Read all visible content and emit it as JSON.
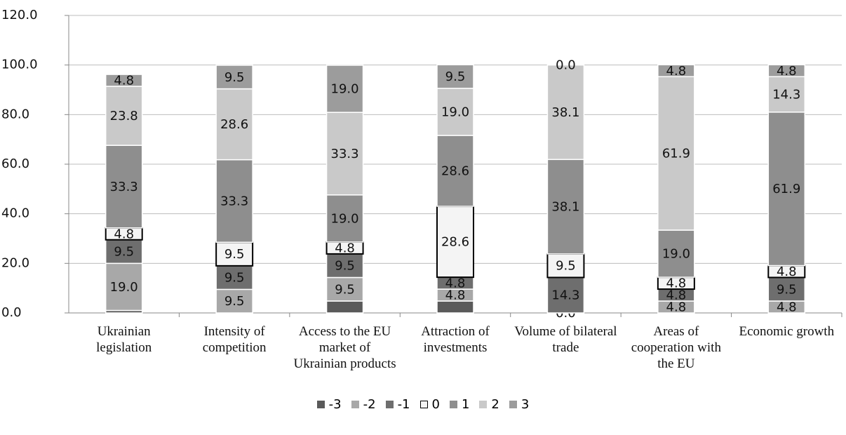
{
  "chart_data": {
    "type": "stacked-bar",
    "categories": [
      "Ukrainian legislation",
      "Intensity of competition",
      "Access to the EU market of Ukrainian products",
      "Attraction of investments",
      "Volume of bilateral trade",
      "Areas of cooperation with the EU",
      "Economic growth"
    ],
    "series": [
      {
        "name": "-3",
        "color": "#5a5a5a",
        "values": [
          1.0,
          0,
          4.8,
          4.8,
          0,
          0,
          0
        ],
        "value_labels": [
          null,
          null,
          null,
          null,
          "0.0",
          null,
          null
        ]
      },
      {
        "name": "-2",
        "color": "#a8a8a8",
        "values": [
          19.0,
          9.5,
          9.5,
          4.8,
          0,
          4.8,
          4.8
        ],
        "value_labels": [
          "19.0",
          "9.5",
          "9.5",
          "4.8",
          null,
          "4.8",
          "4.8"
        ]
      },
      {
        "name": "-1",
        "color": "#6e6e6e",
        "values": [
          9.5,
          9.5,
          9.5,
          4.8,
          14.3,
          4.8,
          9.5
        ],
        "value_labels": [
          "9.5",
          "9.5",
          "9.5",
          "4.8",
          "14.3",
          "4.8",
          "9.5"
        ]
      },
      {
        "name": "0",
        "color": "#f4f4f4",
        "values": [
          4.8,
          9.5,
          4.8,
          28.6,
          9.5,
          4.8,
          4.8
        ],
        "value_labels": [
          "4.8",
          "9.5",
          "4.8",
          "28.6",
          "9.5",
          "4.8",
          "4.8"
        ]
      },
      {
        "name": "1",
        "color": "#8e8e8e",
        "values": [
          33.3,
          33.3,
          19.0,
          28.6,
          38.1,
          19.0,
          61.9
        ],
        "value_labels": [
          "33.3",
          "33.3",
          "19.0",
          "28.6",
          "38.1",
          "19.0",
          "61.9"
        ]
      },
      {
        "name": "2",
        "color": "#c9c9c9",
        "values": [
          23.8,
          28.6,
          33.3,
          19.0,
          38.1,
          61.9,
          14.3
        ],
        "value_labels": [
          "23.8",
          "28.6",
          "33.3",
          "19.0",
          "38.1",
          "61.9",
          "14.3"
        ]
      },
      {
        "name": "3",
        "color": "#9c9c9c",
        "values": [
          4.8,
          9.5,
          19.0,
          9.5,
          0,
          4.8,
          4.8
        ],
        "value_labels": [
          "4.8",
          "9.5",
          "19.0",
          "9.5",
          "0.0",
          "4.8",
          "4.8"
        ]
      }
    ],
    "ylim": [
      0,
      120
    ],
    "yticks": [
      {
        "value": 0,
        "label": "0.0"
      },
      {
        "value": 20,
        "label": "20.0"
      },
      {
        "value": 40,
        "label": "40.0"
      },
      {
        "value": 60,
        "label": "60.0"
      },
      {
        "value": 80,
        "label": "80.0"
      },
      {
        "value": 100,
        "label": "100.0"
      },
      {
        "value": 120,
        "label": "120.0"
      }
    ],
    "grid": true
  }
}
